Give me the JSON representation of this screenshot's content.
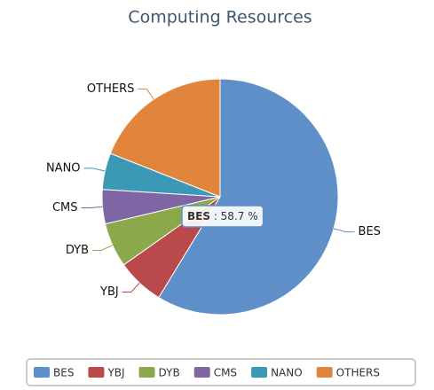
{
  "chart_data": {
    "type": "pie",
    "title": "Computing Resources",
    "categories": [
      "BES",
      "YBJ",
      "DYB",
      "CMS",
      "NANO",
      "OTHERS"
    ],
    "values": [
      58.7,
      6.5,
      6.1,
      4.7,
      5.0,
      19.0
    ],
    "value_labels": [
      "58.7 %",
      null,
      null,
      null,
      null,
      null
    ],
    "colors": [
      "#5f8fc9",
      "#b9494a",
      "#8ba94b",
      "#7f65a3",
      "#3c99b5",
      "#e0853b"
    ],
    "legend": "bottom"
  }
}
